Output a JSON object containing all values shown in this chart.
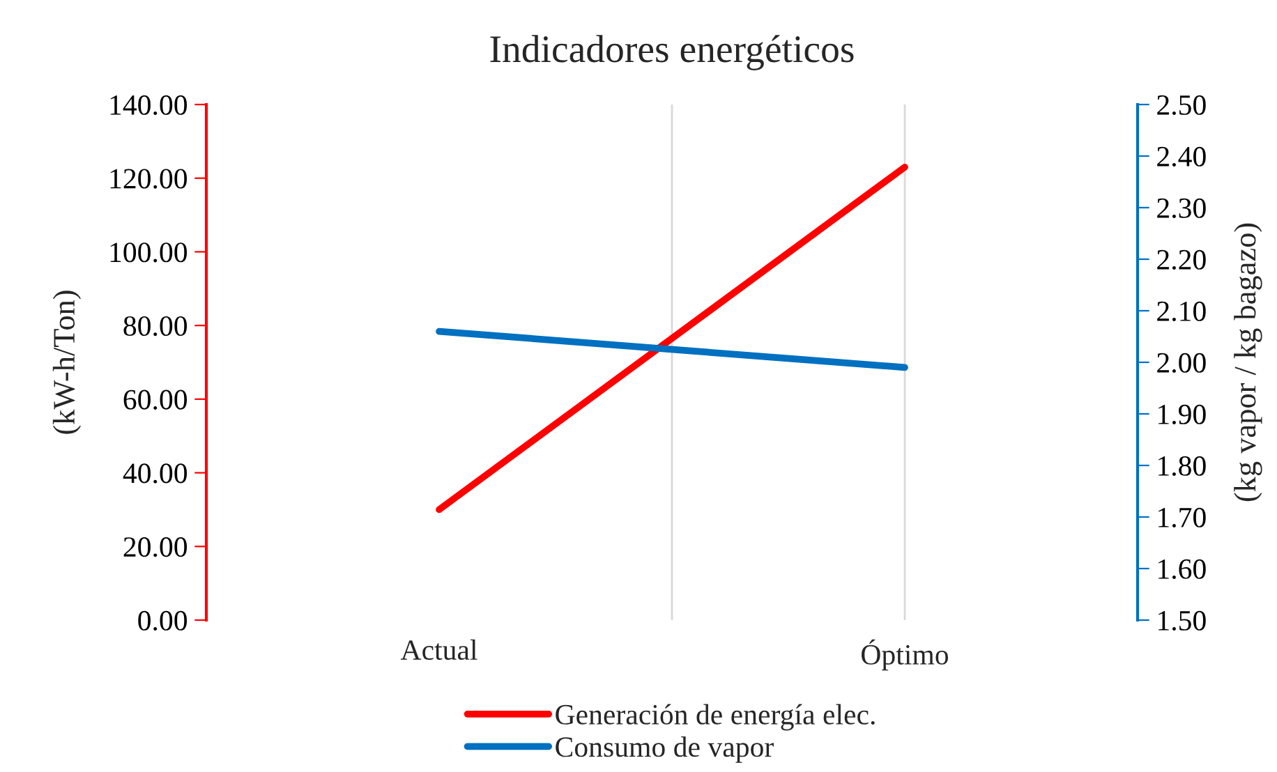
{
  "chart_data": {
    "type": "line",
    "title": "Indicadores energéticos",
    "ylabel": "(kW-h/Ton)",
    "y2label": "(kg vapor / kg bagazo)",
    "categories": [
      "Actual",
      "Óptimo"
    ],
    "series": [
      {
        "name": "Generación de energía elec.",
        "color": "#ff0000",
        "values": [
          30.0,
          123.0
        ]
      },
      {
        "name": "Consumo de vapor",
        "color": "#0070c0",
        "values": [
          2.06,
          1.99
        ],
        "axis": "y2"
      }
    ],
    "ylim": [
      0,
      140
    ],
    "yticks": [
      {
        "value": 0,
        "label": "0.00"
      },
      {
        "value": 20,
        "label": "20.00"
      },
      {
        "value": 40,
        "label": "40.00"
      },
      {
        "value": 60,
        "label": "60.00"
      },
      {
        "value": 80,
        "label": "80.00"
      },
      {
        "value": 100,
        "label": "100.00"
      },
      {
        "value": 120,
        "label": "120.00"
      },
      {
        "value": 140,
        "label": "140.00"
      }
    ],
    "y2lim": [
      1.5,
      2.5
    ],
    "y2ticks": [
      {
        "value": 1.5,
        "label": "1.50"
      },
      {
        "value": 1.6,
        "label": "1.60"
      },
      {
        "value": 1.7,
        "label": "1.70"
      },
      {
        "value": 1.8,
        "label": "1.80"
      },
      {
        "value": 1.9,
        "label": "1.90"
      },
      {
        "value": 2.0,
        "label": "2.00"
      },
      {
        "value": 2.1,
        "label": "2.10"
      },
      {
        "value": 2.2,
        "label": "2.20"
      },
      {
        "value": 2.3,
        "label": "2.30"
      },
      {
        "value": 2.4,
        "label": "2.40"
      },
      {
        "value": 2.5,
        "label": "2.50"
      }
    ],
    "grid": "x",
    "legend": "bottom",
    "marker": "none",
    "line_style": "solid"
  }
}
